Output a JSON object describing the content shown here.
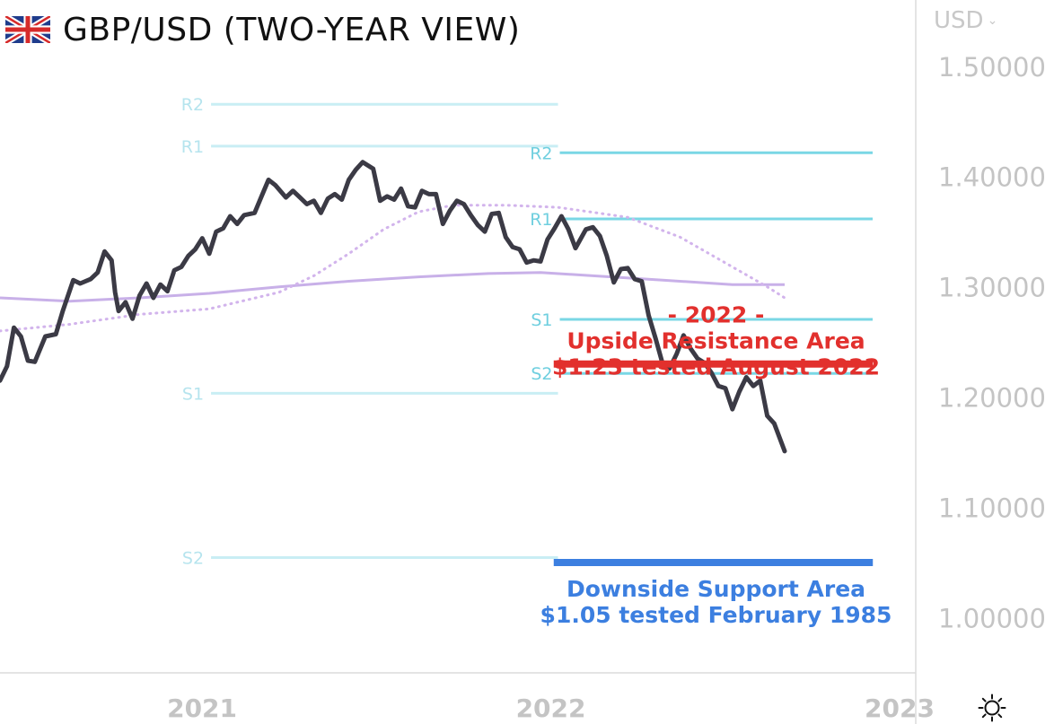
{
  "header": {
    "title": "GBP/USD (TWO-YEAR VIEW)",
    "flag_icon": "uk-flag-icon",
    "currency_label": "USD",
    "currency_icon": "chevron-down-icon"
  },
  "footer": {
    "settings_icon": "sun-gear-icon"
  },
  "colors": {
    "price_line": "#3b3a45",
    "ma_solid": "#c8b0e8",
    "ma_dotted": "#d2b4ec",
    "pivot_faded": "#c9eef4",
    "pivot_faded_label": "#b6e4ee",
    "pivot_bold": "#7ad7e5",
    "pivot_bold_label": "#6fcfdf",
    "resistance": "#e2302d",
    "support": "#3c7fe0",
    "axis_text": "#c4c4c4",
    "separator": "#dcdcdc"
  },
  "chart_data": {
    "type": "line",
    "title": "GBP/USD (TWO-YEAR VIEW)",
    "xlabel": "",
    "ylabel": "USD",
    "xlim": [
      2020.4,
      2023.0
    ],
    "ylim": [
      0.95,
      1.56
    ],
    "x_ticks": [
      {
        "value": 2021,
        "label": "2021"
      },
      {
        "value": 2022,
        "label": "2022"
      },
      {
        "value": 2023,
        "label": "2023"
      }
    ],
    "y_ticks": [
      {
        "value": 1.5,
        "label": "1.50000"
      },
      {
        "value": 1.4,
        "label": "1.40000"
      },
      {
        "value": 1.3,
        "label": "1.30000"
      },
      {
        "value": 1.2,
        "label": "1.20000"
      },
      {
        "value": 1.1,
        "label": "1.10000"
      },
      {
        "value": 1.0,
        "label": "1.00000"
      }
    ],
    "series": [
      {
        "x": [
          2020.4,
          2020.42,
          2020.44,
          2020.46,
          2020.48,
          2020.5,
          2020.53,
          2020.56,
          2020.58,
          2020.61,
          2020.63,
          2020.66,
          2020.68,
          2020.7,
          2020.72,
          2020.73,
          2020.74,
          2020.76,
          2020.78,
          2020.8,
          2020.82,
          2020.84,
          2020.86,
          2020.88,
          2020.9,
          2020.92,
          2020.94,
          2020.96,
          2020.98,
          2021.0,
          2021.02,
          2021.04,
          2021.06,
          2021.08,
          2021.1,
          2021.13,
          2021.15,
          2021.17,
          2021.19,
          2021.22,
          2021.24,
          2021.26,
          2021.28,
          2021.3,
          2021.32,
          2021.34,
          2021.36,
          2021.38,
          2021.4,
          2021.42,
          2021.44,
          2021.47,
          2021.49,
          2021.51,
          2021.53,
          2021.55,
          2021.57,
          2021.59,
          2021.61,
          2021.63,
          2021.65,
          2021.67,
          2021.69,
          2021.71,
          2021.73,
          2021.75,
          2021.77,
          2021.79,
          2021.81,
          2021.83,
          2021.85,
          2021.87,
          2021.89,
          2021.91,
          2021.93,
          2021.95,
          2021.97,
          2021.99,
          2022.01,
          2022.03,
          2022.05,
          2022.08,
          2022.1,
          2022.12,
          2022.14,
          2022.16,
          2022.18,
          2022.2,
          2022.22,
          2022.24,
          2022.26,
          2022.28,
          2022.3,
          2022.32,
          2022.34,
          2022.36,
          2022.38,
          2022.4,
          2022.42,
          2022.44,
          2022.46,
          2022.48,
          2022.5,
          2022.52,
          2022.54,
          2022.56,
          2022.58,
          2022.6,
          2022.62,
          2022.65
        ],
        "values": [
          1.215,
          1.228,
          1.263,
          1.255,
          1.233,
          1.232,
          1.255,
          1.257,
          1.278,
          1.306,
          1.303,
          1.307,
          1.313,
          1.332,
          1.324,
          1.295,
          1.278,
          1.286,
          1.271,
          1.292,
          1.303,
          1.29,
          1.302,
          1.296,
          1.315,
          1.318,
          1.328,
          1.334,
          1.344,
          1.33,
          1.35,
          1.353,
          1.364,
          1.357,
          1.365,
          1.367,
          1.382,
          1.397,
          1.392,
          1.381,
          1.387,
          1.381,
          1.375,
          1.378,
          1.367,
          1.38,
          1.384,
          1.379,
          1.397,
          1.406,
          1.413,
          1.407,
          1.378,
          1.382,
          1.379,
          1.389,
          1.373,
          1.372,
          1.387,
          1.384,
          1.384,
          1.357,
          1.369,
          1.378,
          1.375,
          1.365,
          1.356,
          1.35,
          1.366,
          1.367,
          1.345,
          1.336,
          1.334,
          1.322,
          1.324,
          1.323,
          1.343,
          1.353,
          1.364,
          1.352,
          1.335,
          1.352,
          1.354,
          1.346,
          1.328,
          1.304,
          1.316,
          1.317,
          1.307,
          1.305,
          1.274,
          1.253,
          1.23,
          1.226,
          1.239,
          1.256,
          1.244,
          1.235,
          1.231,
          1.222,
          1.21,
          1.208,
          1.189,
          1.205,
          1.218,
          1.21,
          1.215,
          1.183,
          1.176,
          1.151
        ]
      },
      {
        "x": [
          2020.4,
          2020.6,
          2020.8,
          2021.0,
          2021.2,
          2021.4,
          2021.6,
          2021.8,
          2021.95,
          2022.1,
          2022.3,
          2022.5,
          2022.65
        ],
        "values": [
          1.29,
          1.287,
          1.29,
          1.294,
          1.3,
          1.305,
          1.309,
          1.312,
          1.313,
          1.31,
          1.306,
          1.302,
          1.302
        ]
      },
      {
        "x": [
          2020.4,
          2020.6,
          2020.8,
          2021.0,
          2021.2,
          2021.3,
          2021.4,
          2021.5,
          2021.6,
          2021.7,
          2021.85,
          2022.0,
          2022.2,
          2022.35,
          2022.5,
          2022.6,
          2022.65
        ],
        "values": [
          1.26,
          1.266,
          1.275,
          1.28,
          1.295,
          1.31,
          1.33,
          1.352,
          1.368,
          1.374,
          1.374,
          1.372,
          1.363,
          1.345,
          1.318,
          1.3,
          1.29
        ]
      }
    ],
    "pivot_levels": [
      {
        "period": "2021",
        "x": [
          2021.0,
          2022.0
        ],
        "levels": [
          {
            "label": "R2",
            "value": 1.4655
          },
          {
            "label": "R1",
            "value": 1.4275
          },
          {
            "label": "S1",
            "value": 1.2035
          },
          {
            "label": "S2",
            "value": 1.0545
          }
        ]
      },
      {
        "period": "2022",
        "x": [
          2022.0,
          2023.0
        ],
        "levels": [
          {
            "label": "R2",
            "value": 1.4215
          },
          {
            "label": "R1",
            "value": 1.3615
          },
          {
            "label": "S1",
            "value": 1.2705
          },
          {
            "label": "S2",
            "value": 1.2215
          }
        ]
      }
    ],
    "annotations": [
      {
        "kind": "resistance",
        "value": 1.23,
        "x": [
          2021.98,
          2022.98
        ],
        "lines": [
          "- 2022 -",
          "Upside Resistance Area",
          "$1.23 tested August 2022"
        ]
      },
      {
        "kind": "support",
        "value": 1.05,
        "x": [
          2021.98,
          2022.98
        ],
        "lines": [
          "Downside Support Area",
          "$1.05 tested February 1985"
        ]
      }
    ],
    "grid": false,
    "legend": "none"
  }
}
